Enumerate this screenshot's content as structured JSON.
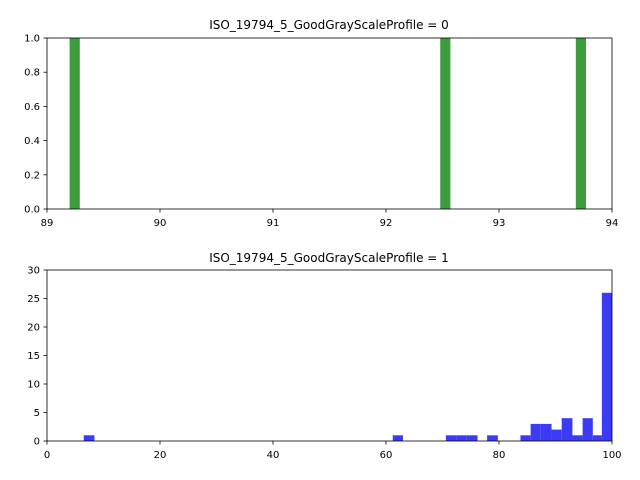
{
  "chart_data": [
    {
      "type": "bar",
      "title": "ISO_19794_5_GoodGrayScaleProfile = 0",
      "xlabel": "",
      "ylabel": "",
      "xlim": [
        89,
        94
      ],
      "ylim": [
        0,
        1.0
      ],
      "xticks": [
        "89",
        "90",
        "91",
        "92",
        "93",
        "94"
      ],
      "yticks": [
        "0.0",
        "0.2",
        "0.4",
        "0.6",
        "0.8",
        "1.0"
      ],
      "color": "#3d9c3d",
      "bins": [
        {
          "x0": 89.2,
          "x1": 89.29,
          "value": 1
        },
        {
          "x0": 92.48,
          "x1": 92.57,
          "value": 1
        },
        {
          "x0": 93.68,
          "x1": 93.77,
          "value": 1
        }
      ]
    },
    {
      "type": "bar",
      "title": "ISO_19794_5_GoodGrayScaleProfile = 1",
      "xlabel": "",
      "ylabel": "",
      "xlim": [
        0,
        100
      ],
      "ylim": [
        0,
        30
      ],
      "xticks": [
        "0",
        "20",
        "40",
        "60",
        "80",
        "100"
      ],
      "yticks": [
        "0",
        "5",
        "10",
        "15",
        "20",
        "25",
        "30"
      ],
      "color": "#3b3bf5",
      "bins": [
        {
          "x0": 6.5,
          "x1": 8.4,
          "value": 1
        },
        {
          "x0": 61.2,
          "x1": 63.0,
          "value": 1
        },
        {
          "x0": 70.6,
          "x1": 72.5,
          "value": 1
        },
        {
          "x0": 72.5,
          "x1": 74.3,
          "value": 1
        },
        {
          "x0": 74.3,
          "x1": 76.2,
          "value": 1
        },
        {
          "x0": 77.9,
          "x1": 79.8,
          "value": 1
        },
        {
          "x0": 83.8,
          "x1": 85.6,
          "value": 1
        },
        {
          "x0": 85.6,
          "x1": 87.4,
          "value": 3
        },
        {
          "x0": 87.4,
          "x1": 89.3,
          "value": 3
        },
        {
          "x0": 89.3,
          "x1": 91.1,
          "value": 2
        },
        {
          "x0": 91.1,
          "x1": 93.0,
          "value": 4
        },
        {
          "x0": 93.0,
          "x1": 94.8,
          "value": 1
        },
        {
          "x0": 94.8,
          "x1": 96.6,
          "value": 4
        },
        {
          "x0": 96.6,
          "x1": 98.2,
          "value": 1
        },
        {
          "x0": 98.2,
          "x1": 100.0,
          "value": 26
        }
      ]
    }
  ]
}
